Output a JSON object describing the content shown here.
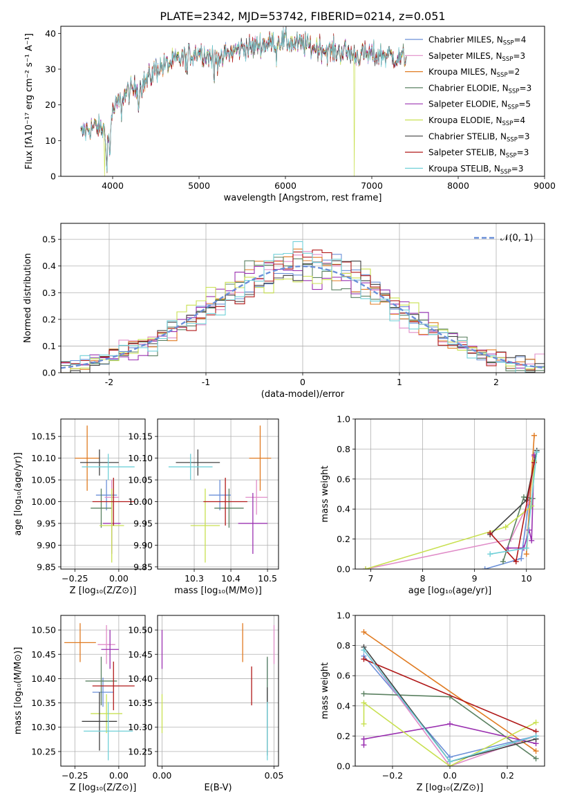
{
  "title": "PLATE=2342, MJD=53742, FIBERID=0214, z=0.051",
  "colors": [
    "#6a8fd8",
    "#e08cc8",
    "#e07a20",
    "#5a8060",
    "#9a30b0",
    "#c8e050",
    "#404040",
    "#b01818",
    "#70d0d8"
  ],
  "legend": [
    {
      "text": "Chabrier MILES, N",
      "sub": "SSP",
      "tail": "=4"
    },
    {
      "text": "Salpeter MILES, N",
      "sub": "SSP",
      "tail": "=3"
    },
    {
      "text": "Kroupa MILES, N",
      "sub": "SSP",
      "tail": "=2"
    },
    {
      "text": "Chabrier ELODIE, N",
      "sub": "SSP",
      "tail": "=3"
    },
    {
      "text": "Salpeter ELODIE, N",
      "sub": "SSP",
      "tail": "=5"
    },
    {
      "text": "Kroupa ELODIE, N",
      "sub": "SSP",
      "tail": "=4"
    },
    {
      "text": "Chabrier STELIB, N",
      "sub": "SSP",
      "tail": "=3"
    },
    {
      "text": "Salpeter STELIB, N",
      "sub": "SSP",
      "tail": "=3"
    },
    {
      "text": "Kroupa STELIB, N",
      "sub": "SSP",
      "tail": "=3"
    }
  ],
  "chart_data": [
    {
      "id": "spectrum",
      "type": "line",
      "xlabel": "wavelength [Angstrom, rest frame]",
      "ylabel": "Flux [fλ10⁻¹⁷ erg cm⁻² s⁻¹ A⁻¹]",
      "xlim": [
        3400,
        9000
      ],
      "ylim": [
        0,
        42
      ],
      "xticks": [
        4000,
        5000,
        6000,
        7000,
        8000,
        9000
      ],
      "yticks": [
        0,
        10,
        20,
        30,
        40
      ],
      "grid": false,
      "legend_position": "right",
      "envelope": {
        "x": [
          3630,
          3700,
          3800,
          3900,
          3950,
          4000,
          4100,
          4200,
          4300,
          4400,
          4500,
          4600,
          4700,
          4800,
          4900,
          5000,
          5100,
          5200,
          5300,
          5400,
          5500,
          5600,
          5700,
          5800,
          5900,
          6000,
          6100,
          6200,
          6300,
          6400,
          6500,
          6600,
          6700,
          6800,
          6900,
          7000,
          7100,
          7200,
          7300,
          7400
        ],
        "y": [
          12,
          13,
          14,
          13,
          10,
          18,
          22,
          24,
          25,
          27,
          30,
          31,
          32,
          33,
          34,
          35,
          34,
          33,
          34,
          35,
          36,
          36,
          37,
          37,
          38,
          38,
          37,
          37,
          36,
          36,
          35,
          35,
          35,
          34,
          34,
          34,
          34,
          34,
          33,
          33
        ]
      }
    },
    {
      "id": "residuals",
      "type": "histogram",
      "xlabel": "(data-model)/error",
      "ylabel": "Normed distribution",
      "xlim": [
        -2.5,
        2.5
      ],
      "ylim": [
        0,
        0.56
      ],
      "xticks": [
        -2,
        -1,
        0,
        1,
        2
      ],
      "yticks": [
        0.0,
        0.1,
        0.2,
        0.3,
        0.4,
        0.5
      ],
      "grid": true,
      "legend": "𝒩(0, 1)",
      "legend_position": "top-right",
      "bin_width": 0.1
    },
    {
      "id": "age-vs-Z",
      "type": "scatter",
      "xlabel": "Z [log₁₀(Z/Z⊙)]",
      "ylabel": "age  [log₁₀(age/yr)]",
      "xlim": [
        -0.33,
        0.15
      ],
      "ylim": [
        9.845,
        10.19
      ],
      "xticks": [
        -0.25,
        0.0
      ],
      "xticklabels": [
        "−0.25",
        "0.00"
      ],
      "yticks": [
        9.85,
        9.9,
        9.95,
        10.0,
        10.05,
        10.1,
        10.15
      ],
      "grid": true,
      "points": [
        {
          "x": -0.07,
          "y": 10.015,
          "xerr": 0.06,
          "yerr": 0.035
        },
        {
          "x": -0.04,
          "y": 10.01,
          "xerr": 0.04,
          "yerr": 0.04
        },
        {
          "x": -0.18,
          "y": 10.1,
          "xerr": 0.07,
          "yerr": 0.075
        },
        {
          "x": -0.1,
          "y": 9.985,
          "xerr": 0.06,
          "yerr": 0.045
        },
        {
          "x": -0.04,
          "y": 9.95,
          "xerr": 0.05,
          "yerr": 0.07
        },
        {
          "x": -0.04,
          "y": 9.945,
          "xerr": 0.07,
          "yerr": 0.085
        },
        {
          "x": -0.11,
          "y": 10.09,
          "xerr": 0.11,
          "yerr": 0.03
        },
        {
          "x": -0.03,
          "y": 10.0,
          "xerr": 0.12,
          "yerr": 0.055
        },
        {
          "x": -0.06,
          "y": 10.08,
          "xerr": 0.15,
          "yerr": 0.03
        }
      ]
    },
    {
      "id": "age-vs-mass",
      "type": "scatter",
      "xlabel": "mass [log₁₀(M/M⊙)]",
      "ylabel": "",
      "xlim": [
        10.2,
        10.53
      ],
      "ylim": [
        9.845,
        10.19
      ],
      "xticks": [
        10.3,
        10.4,
        10.5
      ],
      "yticks": [
        9.85,
        9.9,
        9.95,
        10.0,
        10.05,
        10.1,
        10.15
      ],
      "grid": true,
      "points": [
        {
          "x": 10.37,
          "y": 10.015,
          "xerr": 0.03,
          "yerr": 0.035
        },
        {
          "x": 10.47,
          "y": 10.01,
          "xerr": 0.03,
          "yerr": 0.04
        },
        {
          "x": 10.48,
          "y": 10.1,
          "xerr": 0.03,
          "yerr": 0.075
        },
        {
          "x": 10.395,
          "y": 9.985,
          "xerr": 0.04,
          "yerr": 0.045
        },
        {
          "x": 10.46,
          "y": 9.95,
          "xerr": 0.04,
          "yerr": 0.07
        },
        {
          "x": 10.33,
          "y": 9.945,
          "xerr": 0.04,
          "yerr": 0.085
        },
        {
          "x": 10.31,
          "y": 10.09,
          "xerr": 0.06,
          "yerr": 0.03
        },
        {
          "x": 10.385,
          "y": 10.0,
          "xerr": 0.06,
          "yerr": 0.055
        },
        {
          "x": 10.29,
          "y": 10.08,
          "xerr": 0.06,
          "yerr": 0.03
        }
      ]
    },
    {
      "id": "weight-vs-age",
      "type": "line",
      "xlabel": "age  [log₁₀(age/yr)]",
      "ylabel": "mass weight",
      "xlim": [
        6.7,
        10.35
      ],
      "ylim": [
        0,
        1
      ],
      "xticks": [
        7,
        8,
        9,
        10
      ],
      "yticks": [
        0.0,
        0.2,
        0.4,
        0.6,
        0.8,
        1.0
      ],
      "grid": true,
      "series": [
        {
          "x": [
            9.2,
            9.9,
            10.15
          ],
          "y": [
            0.0,
            0.07,
            0.72
          ]
        },
        {
          "x": [
            6.9,
            9.7,
            10.05,
            10.15
          ],
          "y": [
            0.0,
            0.2,
            0.45,
            0.75
          ]
        },
        {
          "x": [
            10.0,
            10.15
          ],
          "y": [
            0.1,
            0.89
          ]
        },
        {
          "x": [
            9.55,
            9.95,
            10.12
          ],
          "y": [
            0.05,
            0.48,
            0.47
          ]
        },
        {
          "x": [
            9.65,
            9.95,
            10.05,
            10.1,
            10.15
          ],
          "y": [
            0.14,
            0.14,
            0.26,
            0.19,
            0.76
          ]
        },
        {
          "x": [
            6.9,
            9.6,
            10.1,
            10.15
          ],
          "y": [
            0.0,
            0.28,
            0.42,
            0.72
          ]
        },
        {
          "x": [
            9.3,
            10.0,
            10.2
          ],
          "y": [
            0.23,
            0.46,
            0.79
          ]
        },
        {
          "x": [
            9.3,
            9.8,
            10.15
          ],
          "y": [
            0.24,
            0.05,
            0.71
          ]
        },
        {
          "x": [
            9.3,
            10.0,
            10.2
          ],
          "y": [
            0.1,
            0.14,
            0.78
          ]
        }
      ]
    },
    {
      "id": "mass-vs-Z",
      "type": "scatter",
      "xlabel": "Z [log₁₀(Z/Z⊙)]",
      "ylabel": "mass [log₁₀(M/M⊙)]",
      "xlim": [
        -0.33,
        0.15
      ],
      "ylim": [
        10.22,
        10.53
      ],
      "xticks": [
        -0.25,
        0.0
      ],
      "xticklabels": [
        "−0.25",
        "0.00"
      ],
      "yticks": [
        10.25,
        10.3,
        10.35,
        10.4,
        10.45,
        10.5
      ],
      "grid": true,
      "points": [
        {
          "x": -0.09,
          "y": 10.372,
          "xerr": 0.06,
          "yerr": 0.03
        },
        {
          "x": -0.07,
          "y": 10.47,
          "xerr": 0.05,
          "yerr": 0.04
        },
        {
          "x": -0.22,
          "y": 10.474,
          "xerr": 0.09,
          "yerr": 0.04
        },
        {
          "x": -0.1,
          "y": 10.395,
          "xerr": 0.09,
          "yerr": 0.05
        },
        {
          "x": -0.05,
          "y": 10.46,
          "xerr": 0.05,
          "yerr": 0.04
        },
        {
          "x": -0.07,
          "y": 10.328,
          "xerr": 0.09,
          "yerr": 0.04
        },
        {
          "x": -0.11,
          "y": 10.312,
          "xerr": 0.1,
          "yerr": 0.06
        },
        {
          "x": -0.03,
          "y": 10.385,
          "xerr": 0.12,
          "yerr": 0.05
        },
        {
          "x": -0.06,
          "y": 10.292,
          "xerr": 0.14,
          "yerr": 0.06
        }
      ]
    },
    {
      "id": "mass-vs-EBV",
      "type": "scatter",
      "xlabel": "E(B-V)",
      "ylabel": "",
      "xlim": [
        -0.002,
        0.052
      ],
      "ylim": [
        10.22,
        10.53
      ],
      "xticks": [
        0.0,
        0.05
      ],
      "xticklabels": [
        "0.00",
        "0.05"
      ],
      "yticks": [
        10.25,
        10.3,
        10.35,
        10.4,
        10.45,
        10.5
      ],
      "grid": true,
      "points": [
        {
          "x": 0.047,
          "y": 10.372,
          "yerr": 0.07
        },
        {
          "x": 0.05,
          "y": 10.47,
          "yerr": 0.04
        },
        {
          "x": 0.036,
          "y": 10.474,
          "yerr": 0.04
        },
        {
          "x": 0.047,
          "y": 10.395,
          "yerr": 0.05
        },
        {
          "x": 0.0,
          "y": 10.46,
          "yerr": 0.04
        },
        {
          "x": 0.0,
          "y": 10.328,
          "yerr": 0.04
        },
        {
          "x": 0.047,
          "y": 10.312,
          "yerr": 0.07
        },
        {
          "x": 0.04,
          "y": 10.385,
          "yerr": 0.04
        },
        {
          "x": 0.047,
          "y": 10.292,
          "yerr": 0.06
        }
      ]
    },
    {
      "id": "weight-vs-Z",
      "type": "line",
      "xlabel": "Z [log₁₀(Z/Z⊙)]",
      "ylabel": "mass weight",
      "xlim": [
        -0.33,
        0.33
      ],
      "ylim": [
        0,
        1
      ],
      "xticks": [
        -0.2,
        0.0,
        0.2
      ],
      "xticklabels": [
        "−0.2",
        "0.0",
        "0.2"
      ],
      "yticks": [
        0.0,
        0.2,
        0.4,
        0.6,
        0.8,
        1.0
      ],
      "grid": true,
      "series": [
        {
          "x": [
            -0.3,
            0.0,
            0.3
          ],
          "y": [
            0.73,
            0.06,
            0.2
          ]
        },
        {
          "x": [
            -0.3,
            0.0,
            0.3
          ],
          "y": [
            0.77,
            0.0,
            0.2
          ]
        },
        {
          "x": [
            -0.3,
            0.3
          ],
          "y": [
            0.89,
            0.1
          ]
        },
        {
          "x": [
            -0.3,
            0.0,
            0.3
          ],
          "y": [
            0.48,
            0.46,
            0.05
          ]
        },
        {
          "x": [
            -0.3,
            -0.3,
            0.0,
            0.3
          ],
          "y": [
            0.14,
            0.18,
            0.28,
            0.15
          ]
        },
        {
          "x": [
            -0.3,
            -0.3,
            0.0,
            0.3
          ],
          "y": [
            0.28,
            0.42,
            0.0,
            0.29
          ]
        },
        {
          "x": [
            -0.3,
            0.0,
            0.3
          ],
          "y": [
            0.79,
            0.03,
            0.18
          ]
        },
        {
          "x": [
            -0.3,
            0.3
          ],
          "y": [
            0.71,
            0.23
          ]
        },
        {
          "x": [
            -0.3,
            0.0,
            0.3
          ],
          "y": [
            0.77,
            0.03,
            0.2
          ]
        }
      ]
    }
  ]
}
